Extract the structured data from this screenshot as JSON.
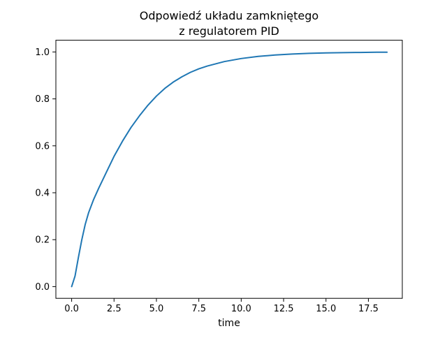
{
  "chart_data": {
    "type": "line",
    "title": [
      "Odpowiedź układu zamkniętego",
      "z regulatorem PID"
    ],
    "xlabel": "time",
    "ylabel": "",
    "xlim": [
      -0.93,
      19.5
    ],
    "ylim": [
      -0.05,
      1.05
    ],
    "x_ticks": [
      0.0,
      2.5,
      5.0,
      7.5,
      10.0,
      12.5,
      15.0,
      17.5
    ],
    "x_tick_labels": [
      "0.0",
      "2.5",
      "5.0",
      "7.5",
      "10.0",
      "12.5",
      "15.0",
      "17.5"
    ],
    "y_ticks": [
      0.0,
      0.2,
      0.4,
      0.6,
      0.8,
      1.0
    ],
    "y_tick_labels": [
      "0.0",
      "0.2",
      "0.4",
      "0.6",
      "0.8",
      "1.0"
    ],
    "grid": false,
    "legend": "none",
    "series": [
      {
        "color": "#1f77b4",
        "x": [
          0.0,
          0.2,
          0.4,
          0.6,
          0.8,
          1.0,
          1.3,
          1.6,
          2.0,
          2.5,
          3.0,
          3.5,
          4.0,
          4.5,
          5.0,
          5.5,
          6.0,
          6.5,
          7.0,
          7.5,
          8.0,
          9.0,
          10.0,
          11.0,
          12.0,
          13.0,
          14.0,
          15.0,
          16.0,
          17.0,
          18.0,
          18.6
        ],
        "y": [
          0.0,
          0.045,
          0.125,
          0.2,
          0.265,
          0.315,
          0.372,
          0.42,
          0.48,
          0.555,
          0.62,
          0.678,
          0.728,
          0.773,
          0.812,
          0.845,
          0.872,
          0.894,
          0.913,
          0.928,
          0.94,
          0.959,
          0.972,
          0.981,
          0.987,
          0.991,
          0.994,
          0.996,
          0.997,
          0.998,
          0.999,
          0.999
        ]
      }
    ]
  }
}
